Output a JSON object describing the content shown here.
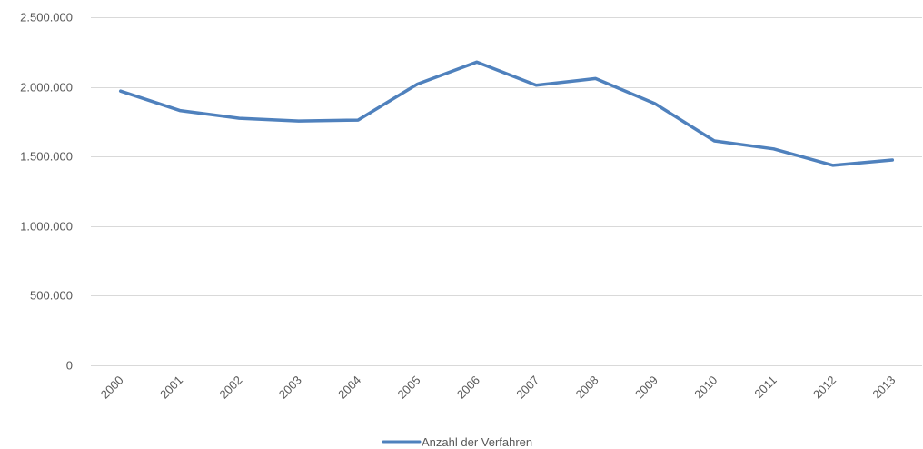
{
  "chart_data": {
    "type": "line",
    "title": "",
    "xlabel": "",
    "ylabel": "",
    "categories": [
      "2000",
      "2001",
      "2002",
      "2003",
      "2004",
      "2005",
      "2006",
      "2007",
      "2008",
      "2009",
      "2010",
      "2011",
      "2012",
      "2013"
    ],
    "series": [
      {
        "name": "Anzahl der Verfahren",
        "values": [
          1970000,
          1830000,
          1775000,
          1755000,
          1762000,
          2020000,
          2178000,
          2012000,
          2060000,
          1880000,
          1612000,
          1555000,
          1437000,
          1475000
        ],
        "color": "#4F81BD"
      }
    ],
    "ylim": [
      0,
      2500000
    ],
    "yticks": [
      0,
      500000,
      1000000,
      1500000,
      2000000,
      2500000
    ],
    "ytick_labels": [
      "0",
      "500.000",
      "1.000.000",
      "1.500.000",
      "2.000.000",
      "2.500.000"
    ],
    "grid": true,
    "legend_position": "bottom-center"
  }
}
